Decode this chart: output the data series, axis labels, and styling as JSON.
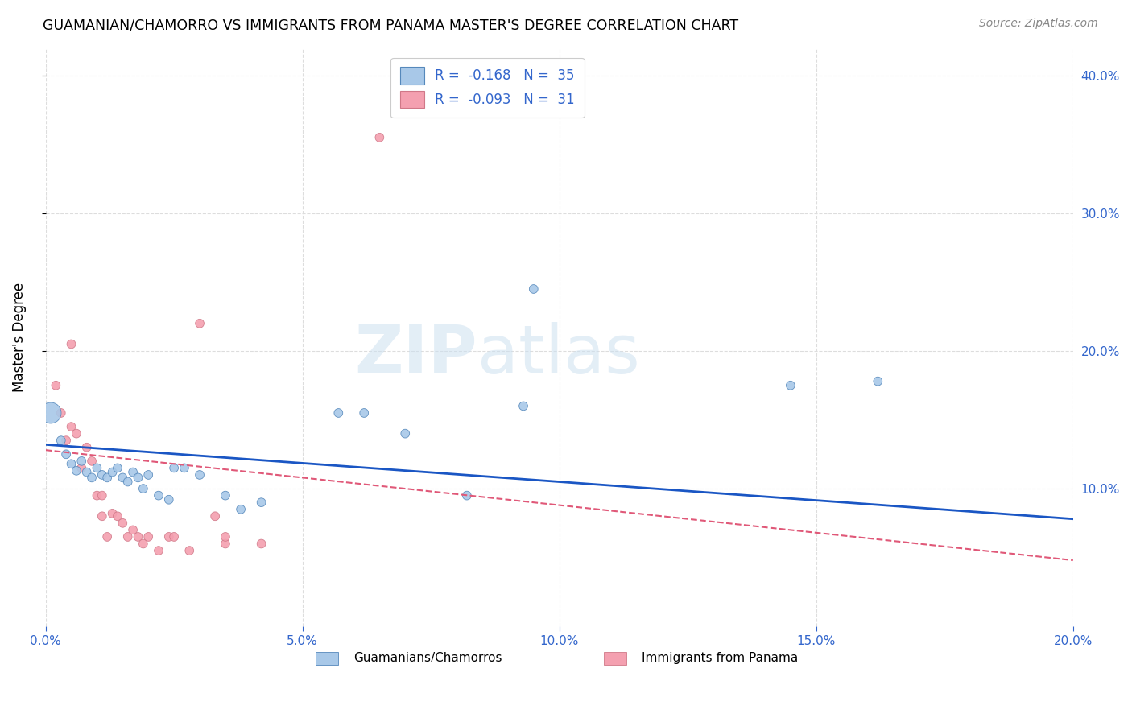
{
  "title": "GUAMANIAN/CHAMORRO VS IMMIGRANTS FROM PANAMA MASTER'S DEGREE CORRELATION CHART",
  "source": "Source: ZipAtlas.com",
  "ylabel": "Master's Degree",
  "xlim": [
    0.0,
    0.2
  ],
  "ylim": [
    0.0,
    0.42
  ],
  "xtick_vals": [
    0.0,
    0.05,
    0.1,
    0.15,
    0.2
  ],
  "xtick_labels": [
    "0.0%",
    "5.0%",
    "10.0%",
    "15.0%",
    "20.0%"
  ],
  "ytick_vals": [
    0.1,
    0.2,
    0.3,
    0.4
  ],
  "ytick_labels": [
    "10.0%",
    "20.0%",
    "30.0%",
    "40.0%"
  ],
  "blue_R": -0.168,
  "blue_N": 35,
  "pink_R": -0.093,
  "pink_N": 31,
  "blue_legend": "Guamanians/Chamorros",
  "pink_legend": "Immigrants from Panama",
  "blue_color": "#a8c8e8",
  "pink_color": "#f4a0b0",
  "blue_line_color": "#1a56c4",
  "pink_line_color": "#e05878",
  "grid_color": "#dddddd",
  "blue_scatter": [
    [
      0.001,
      0.155
    ],
    [
      0.003,
      0.135
    ],
    [
      0.004,
      0.125
    ],
    [
      0.005,
      0.118
    ],
    [
      0.006,
      0.113
    ],
    [
      0.007,
      0.12
    ],
    [
      0.008,
      0.112
    ],
    [
      0.009,
      0.108
    ],
    [
      0.01,
      0.115
    ],
    [
      0.011,
      0.11
    ],
    [
      0.012,
      0.108
    ],
    [
      0.013,
      0.112
    ],
    [
      0.014,
      0.115
    ],
    [
      0.015,
      0.108
    ],
    [
      0.016,
      0.105
    ],
    [
      0.017,
      0.112
    ],
    [
      0.018,
      0.108
    ],
    [
      0.019,
      0.1
    ],
    [
      0.02,
      0.11
    ],
    [
      0.022,
      0.095
    ],
    [
      0.024,
      0.092
    ],
    [
      0.025,
      0.115
    ],
    [
      0.027,
      0.115
    ],
    [
      0.03,
      0.11
    ],
    [
      0.035,
      0.095
    ],
    [
      0.038,
      0.085
    ],
    [
      0.042,
      0.09
    ],
    [
      0.057,
      0.155
    ],
    [
      0.062,
      0.155
    ],
    [
      0.07,
      0.14
    ],
    [
      0.082,
      0.095
    ],
    [
      0.093,
      0.16
    ],
    [
      0.095,
      0.245
    ],
    [
      0.145,
      0.175
    ],
    [
      0.162,
      0.178
    ]
  ],
  "blue_sizes": [
    350,
    60,
    60,
    60,
    60,
    60,
    60,
    60,
    60,
    60,
    60,
    60,
    60,
    60,
    60,
    60,
    60,
    60,
    60,
    60,
    60,
    60,
    60,
    60,
    60,
    60,
    60,
    60,
    60,
    60,
    60,
    60,
    60,
    60,
    60
  ],
  "pink_scatter": [
    [
      0.002,
      0.175
    ],
    [
      0.003,
      0.155
    ],
    [
      0.004,
      0.135
    ],
    [
      0.005,
      0.145
    ],
    [
      0.005,
      0.205
    ],
    [
      0.006,
      0.14
    ],
    [
      0.007,
      0.115
    ],
    [
      0.008,
      0.13
    ],
    [
      0.009,
      0.12
    ],
    [
      0.01,
      0.095
    ],
    [
      0.011,
      0.095
    ],
    [
      0.011,
      0.08
    ],
    [
      0.012,
      0.065
    ],
    [
      0.013,
      0.082
    ],
    [
      0.014,
      0.08
    ],
    [
      0.015,
      0.075
    ],
    [
      0.016,
      0.065
    ],
    [
      0.017,
      0.07
    ],
    [
      0.018,
      0.065
    ],
    [
      0.019,
      0.06
    ],
    [
      0.02,
      0.065
    ],
    [
      0.022,
      0.055
    ],
    [
      0.024,
      0.065
    ],
    [
      0.025,
      0.065
    ],
    [
      0.028,
      0.055
    ],
    [
      0.03,
      0.22
    ],
    [
      0.033,
      0.08
    ],
    [
      0.035,
      0.06
    ],
    [
      0.035,
      0.065
    ],
    [
      0.042,
      0.06
    ],
    [
      0.065,
      0.355
    ]
  ],
  "pink_sizes": [
    60,
    60,
    60,
    60,
    60,
    60,
    60,
    60,
    60,
    60,
    60,
    60,
    60,
    60,
    60,
    60,
    60,
    60,
    60,
    60,
    60,
    60,
    60,
    60,
    60,
    60,
    60,
    60,
    60,
    60,
    60
  ],
  "blue_line_x": [
    0.0,
    0.2
  ],
  "blue_line_y": [
    0.132,
    0.078
  ],
  "pink_line_x": [
    0.0,
    0.2
  ],
  "pink_line_y": [
    0.128,
    0.048
  ]
}
